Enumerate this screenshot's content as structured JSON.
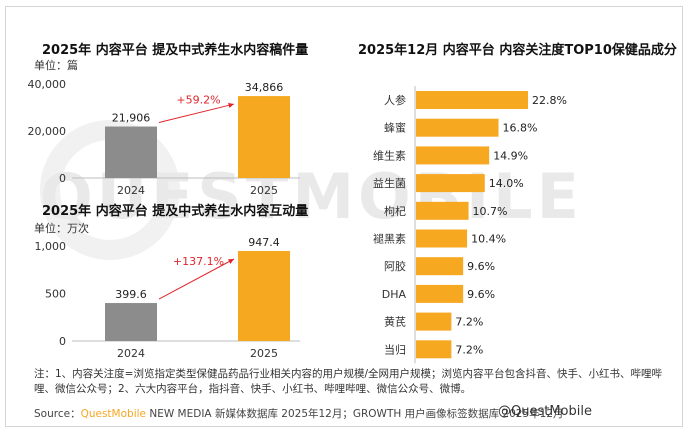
{
  "colors": {
    "gray_bar": "#8c8c8c",
    "orange_bar": "#f7a821",
    "growth": "#e0262b",
    "brand": "#f5a623"
  },
  "watermark": "QUESTMOBILE",
  "chart_data": [
    {
      "type": "bar",
      "title": "2025年 内容平台 提及中式养生水内容稿件量",
      "unit": "单位：篇",
      "categories": [
        "2024",
        "2025"
      ],
      "values": [
        21906,
        34866
      ],
      "value_labels": [
        "21,906",
        "34,866"
      ],
      "ylim": [
        0,
        40000
      ],
      "yticks": [
        0,
        20000,
        40000
      ],
      "ytick_labels": [
        "0",
        "20,000",
        "40,000"
      ],
      "growth_label": "+59.2%"
    },
    {
      "type": "bar",
      "title": "2025年 内容平台 提及中式养生水内容互动量",
      "unit": "单位：万次",
      "categories": [
        "2024",
        "2025"
      ],
      "values": [
        399.6,
        947.4
      ],
      "value_labels": [
        "399.6",
        "947.4"
      ],
      "ylim": [
        0,
        1000
      ],
      "yticks": [
        0,
        500,
        1000
      ],
      "ytick_labels": [
        "0",
        "500",
        "1,000"
      ],
      "growth_label": "+137.1%"
    },
    {
      "type": "bar",
      "orientation": "horizontal",
      "title": "2025年12月 内容平台 内容关注度TOP10保健品成分",
      "categories": [
        "人参",
        "蜂蜜",
        "维生素",
        "益生菌",
        "枸杞",
        "褪黑素",
        "阿胶",
        "DHA",
        "黄芪",
        "当归"
      ],
      "values": [
        22.8,
        16.8,
        14.9,
        14.0,
        10.7,
        10.4,
        9.6,
        9.6,
        7.2,
        7.2
      ],
      "value_labels": [
        "22.8%",
        "16.8%",
        "14.9%",
        "14.0%",
        "10.7%",
        "10.4%",
        "9.6%",
        "9.6%",
        "7.2%",
        "7.2%"
      ]
    }
  ],
  "note": "注：1、内容关注度=浏览指定类型保健品药品行业相关内容的用户规模/全网用户规模；浏览内容平台包含抖音、快手、小红书、哔哩哔哩、微信公众号；2、六大内容平台，指抖音、快手、小红书、哔哩哔哩、微信公众号、微博。",
  "source": {
    "prefix": "Source：",
    "brand": "QuestMobile",
    "text": " NEW MEDIA 新媒体数据库 2025年12月；GROWTH 用户画像标签数据库 2025年12月"
  },
  "handle": "@QuestMobile"
}
